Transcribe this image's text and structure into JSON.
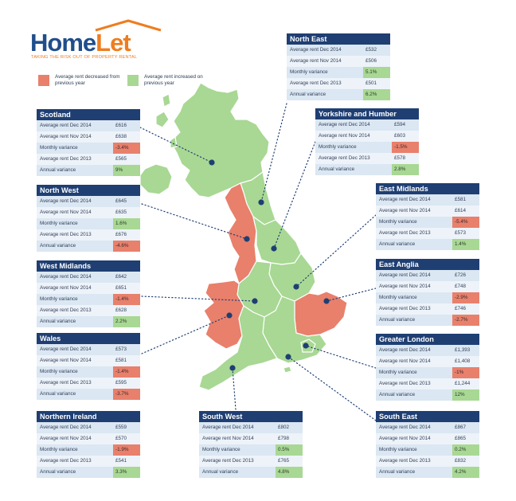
{
  "logo": {
    "home": "Home",
    "let": "Let",
    "tagline": "TAKING THE RISK OUT OF PROPERTY RENTAL"
  },
  "legend": {
    "decrease": "Average rent decreased from previous year",
    "increase": "Average rent increased on previous year"
  },
  "colors": {
    "decrease": "#e8806c",
    "increase": "#a8d894",
    "header": "#1f3f73",
    "row_a": "#dbe7f2",
    "row_b": "#edf3f9"
  },
  "row_labels": [
    "Average rent Dec 2014",
    "Average rent Nov 2014",
    "Monthly variance",
    "Average rent Dec 2013",
    "Annual variance"
  ],
  "regions": [
    {
      "name": "North East",
      "dec2014": "£532",
      "nov2014": "£506",
      "monthly": "5.1%",
      "monthly_trend": "up",
      "dec2013": "£501",
      "annual": "6.2%",
      "annual_trend": "up"
    },
    {
      "name": "Scotland",
      "dec2014": "£616",
      "nov2014": "£638",
      "monthly": "-3.4%",
      "monthly_trend": "down",
      "dec2013": "£565",
      "annual": "9%",
      "annual_trend": "up"
    },
    {
      "name": "Yorkshire and Humber",
      "dec2014": "£594",
      "nov2014": "£603",
      "monthly": "-1.5%",
      "monthly_trend": "down",
      "dec2013": "£578",
      "annual": "2.8%",
      "annual_trend": "up"
    },
    {
      "name": "North West",
      "dec2014": "£645",
      "nov2014": "£635",
      "monthly": "1.6%",
      "monthly_trend": "up",
      "dec2013": "£676",
      "annual": "-4.6%",
      "annual_trend": "down"
    },
    {
      "name": "East Midlands",
      "dec2014": "£581",
      "nov2014": "£614",
      "monthly": "-5.4%",
      "monthly_trend": "down",
      "dec2013": "£573",
      "annual": "1.4%",
      "annual_trend": "up"
    },
    {
      "name": "West Midlands",
      "dec2014": "£642",
      "nov2014": "£651",
      "monthly": "-1.4%",
      "monthly_trend": "down",
      "dec2013": "£628",
      "annual": "2.2%",
      "annual_trend": "up"
    },
    {
      "name": "East Anglia",
      "dec2014": "£726",
      "nov2014": "£748",
      "monthly": "-2.9%",
      "monthly_trend": "down",
      "dec2013": "£746",
      "annual": "-2.7%",
      "annual_trend": "down"
    },
    {
      "name": "Wales",
      "dec2014": "£573",
      "nov2014": "£581",
      "monthly": "-1.4%",
      "monthly_trend": "down",
      "dec2013": "£595",
      "annual": "-3.7%",
      "annual_trend": "down"
    },
    {
      "name": "Greater London",
      "dec2014": "£1,393",
      "nov2014": "£1,408",
      "monthly": "-1%",
      "monthly_trend": "down",
      "dec2013": "£1,244",
      "annual": "12%",
      "annual_trend": "up"
    },
    {
      "name": "Northern Ireland",
      "dec2014": "£559",
      "nov2014": "£570",
      "monthly": "-1.9%",
      "monthly_trend": "down",
      "dec2013": "£541",
      "annual": "3.3%",
      "annual_trend": "up"
    },
    {
      "name": "South West",
      "dec2014": "£802",
      "nov2014": "£798",
      "monthly": "0.5%",
      "monthly_trend": "up",
      "dec2013": "£765",
      "annual": "4.8%",
      "annual_trend": "up"
    },
    {
      "name": "South East",
      "dec2014": "£867",
      "nov2014": "£865",
      "monthly": "0.2%",
      "monthly_trend": "up",
      "dec2013": "£832",
      "annual": "4.2%",
      "annual_trend": "up"
    }
  ]
}
